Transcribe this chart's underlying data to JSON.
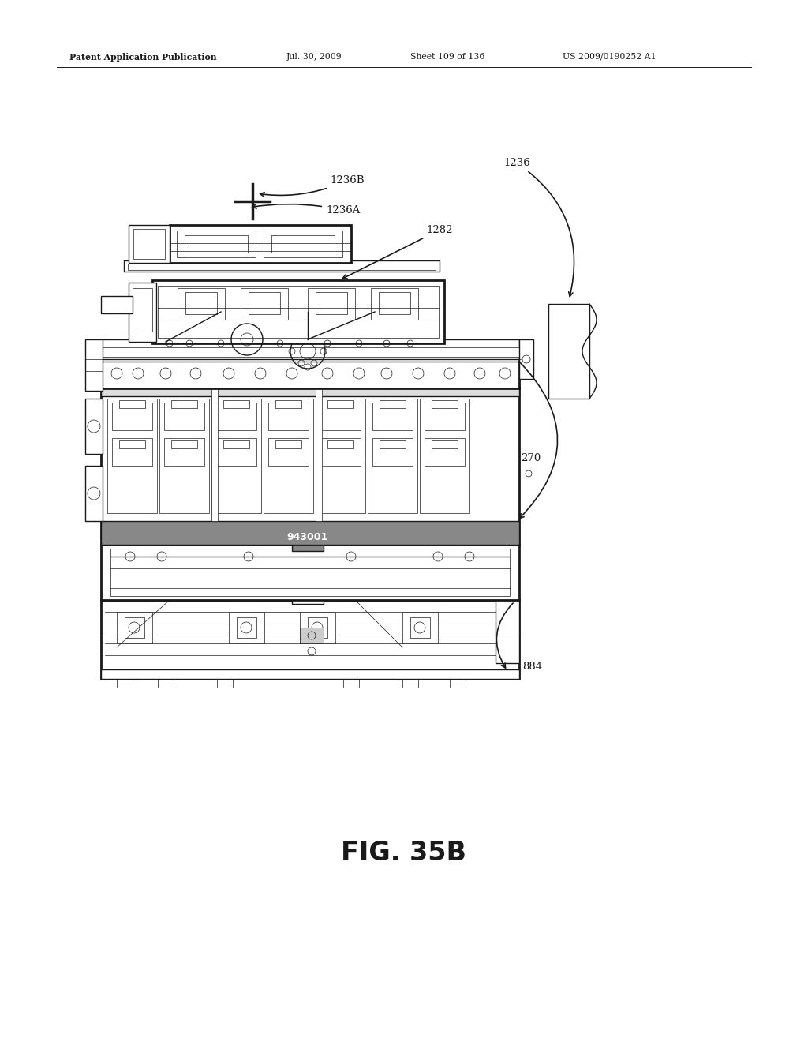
{
  "bg_color": "#ffffff",
  "line_color": "#1a1a1a",
  "header_text": "Patent Application Publication",
  "header_date": "Jul. 30, 2009",
  "header_sheet": "Sheet 109 of 136",
  "header_patent": "US 2009/0190252 A1",
  "figure_label": "FIG. 35B",
  "page_width": 10.24,
  "page_height": 13.2,
  "dpi": 100
}
